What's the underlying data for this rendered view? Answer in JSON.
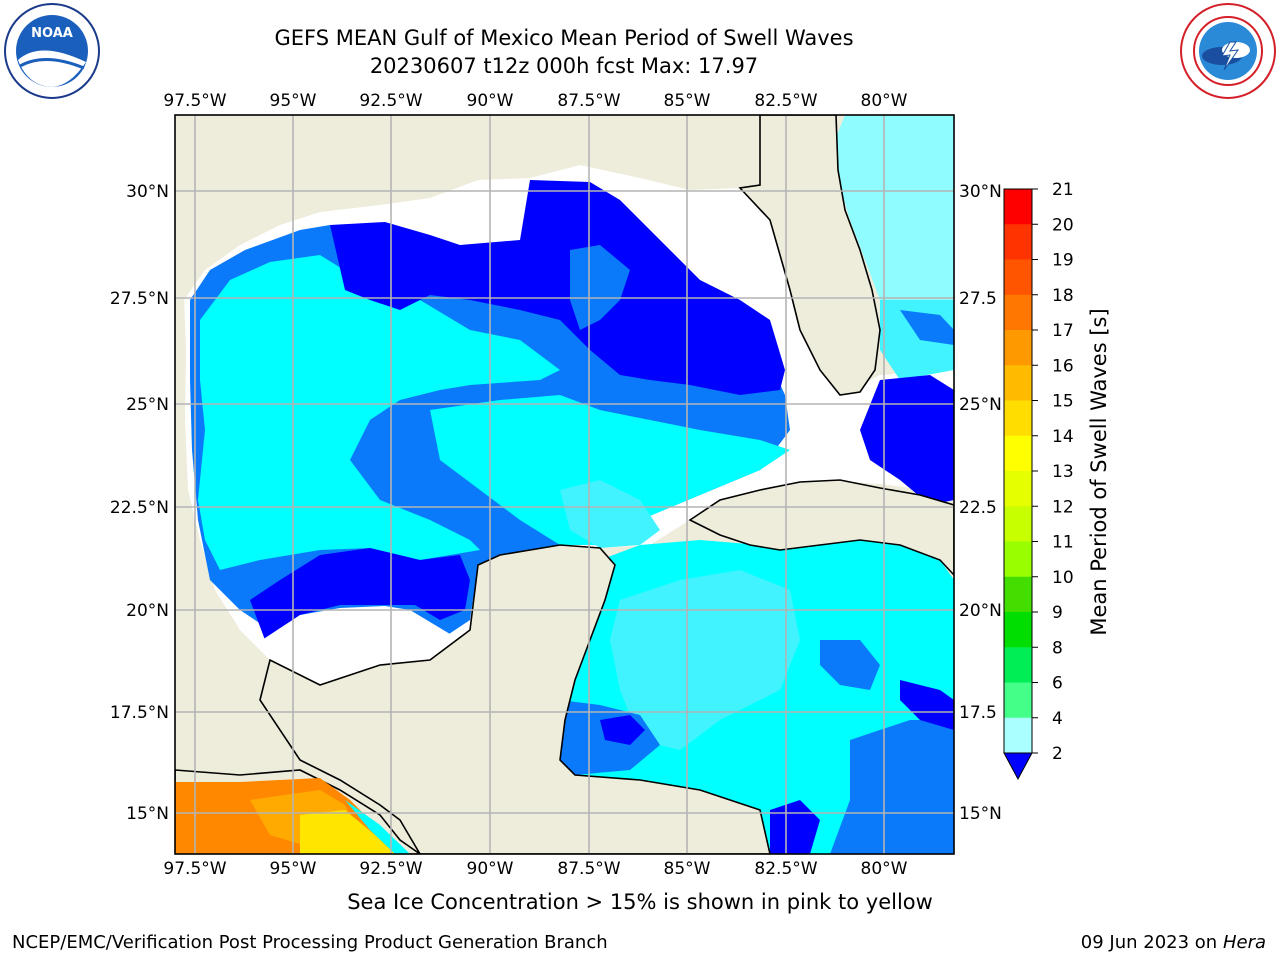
{
  "title_line1": "GEFS MEAN Gulf of Mexico Mean Period of Swell Waves",
  "title_line2": "20230607 t12z 000h fcst   Max: 17.97",
  "caption": "Sea Ice Concentration > 15% is shown in pink to yellow",
  "footer_left": "NCEP/EMC/Verification Post Processing Product Generation Branch",
  "footer_date": "09 Jun 2023 on",
  "footer_host": "Hera",
  "logos": {
    "left_icon": "noaa-logo",
    "left_ring_text": "NATIONAL OCEANIC AND ATMOSPHERIC ADMINISTRATION · U.S. DEPARTMENT OF COMMERCE",
    "left_center_text": "NOAA",
    "right_icon": "nws-logo",
    "right_ring_text": "NATIONAL WEATHER SERVICE"
  },
  "map": {
    "lon_labels": [
      "97.5°W",
      "95°W",
      "92.5°W",
      "90°W",
      "87.5°W",
      "85°W",
      "82.5°W",
      "80°W"
    ],
    "lat_labels_left": [
      "30°N",
      "27.5°N",
      "25°N",
      "22.5°N",
      "20°N",
      "17.5°N",
      "15°N"
    ],
    "lat_labels_right": [
      "30°N",
      "27.5",
      "25°N",
      "22.5",
      "20°N",
      "17.5",
      "15°N"
    ],
    "colors": {
      "land": "#eeecda",
      "grid": "#b4b4b4",
      "blue_dark": "#0000ff",
      "blue_mid": "#0a7afa",
      "cyan": "#00ffff",
      "cyan_light": "#40f3ff",
      "cyan_pale": "#8ffcff",
      "orange": "#ff8800",
      "amber": "#ffaa00",
      "yellow": "#ffe600"
    }
  },
  "colorbar": {
    "label": "Mean Period of Swell Waves [s]",
    "ticks": [
      "21",
      "20",
      "19",
      "18",
      "17",
      "16",
      "15",
      "14",
      "13",
      "12",
      "11",
      "10",
      "9",
      "8",
      "6",
      "4",
      "2"
    ],
    "colors": [
      "#ff0000",
      "#ff3300",
      "#ff5500",
      "#ff7700",
      "#ff9900",
      "#ffbb00",
      "#ffdd00",
      "#ffff00",
      "#e6ff00",
      "#c8ff00",
      "#99ff00",
      "#44dd00",
      "#00dd00",
      "#00ee55",
      "#44ff88",
      "#aaffff",
      "#66ffff",
      "#00ffff",
      "#0096ff",
      "#0000ff"
    ]
  }
}
